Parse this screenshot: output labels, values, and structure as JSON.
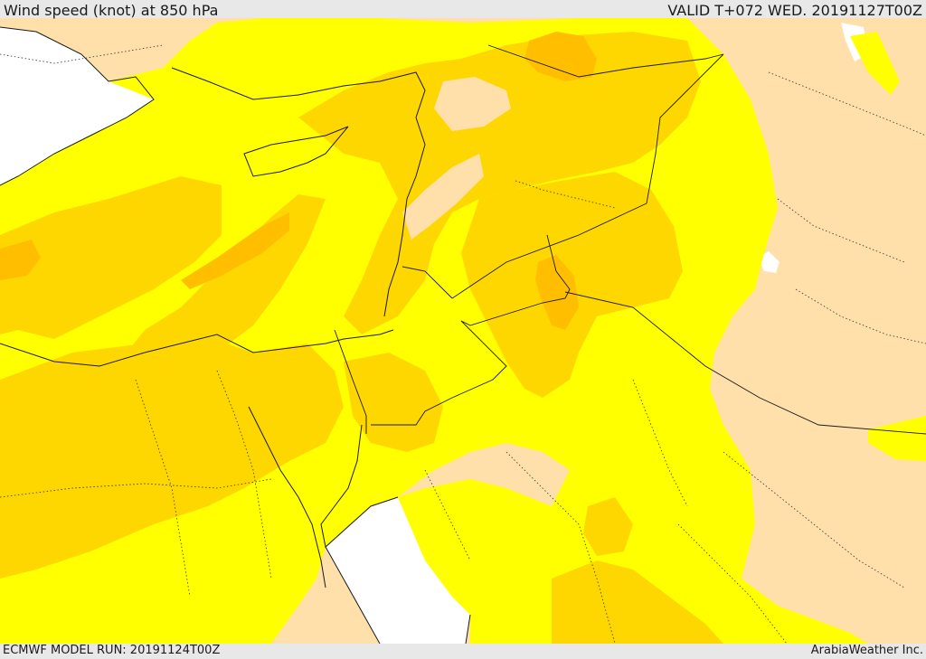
{
  "header": {
    "title": "Wind speed (knot) at 850 hPa",
    "valid_time": "VALID T+072 WED. 20191127T00Z"
  },
  "footer": {
    "model_run": "ECMWF MODEL RUN: 20191124T00Z",
    "credit": "ArabiaWeather Inc."
  },
  "colors": {
    "background_gray": "#e8e8e8",
    "sea_white": "#ffffff",
    "calm_tan": "#ffdfaa",
    "band_yellow": "#ffff00",
    "band_gold": "#ffd700",
    "band_orange": "#ffbf00",
    "boundary_line": "#1a1a1a"
  }
}
